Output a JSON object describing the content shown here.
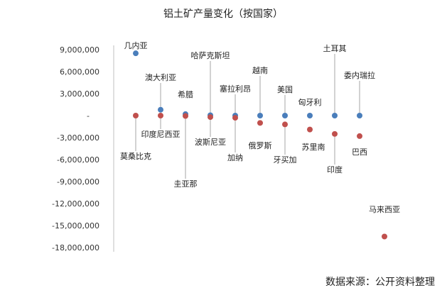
{
  "chart_data": {
    "type": "scatter",
    "title": "铝土矿产量变化（按国家）",
    "source": "数据来源：公开资料整理",
    "ylim": [
      -18000000,
      9000000
    ],
    "y_ticks": [
      {
        "value": 9000000,
        "label": "9,000,000"
      },
      {
        "value": 6000000,
        "label": "6,000,000"
      },
      {
        "value": 3000000,
        "label": "3,000,000"
      },
      {
        "value": 0,
        "label": "-"
      },
      {
        "value": -3000000,
        "label": "-3,000,000"
      },
      {
        "value": -6000000,
        "label": "-6,000,000"
      },
      {
        "value": -9000000,
        "label": "-9,000,000"
      },
      {
        "value": -12000000,
        "label": "-12,000,000"
      },
      {
        "value": -15000000,
        "label": "-15,000,000"
      },
      {
        "value": -18000000,
        "label": "-18,000,000"
      }
    ],
    "grid": false,
    "legend": "none",
    "colors": {
      "increase": "#4a7ebb",
      "decrease": "#c0504d"
    },
    "series": [
      {
        "key": "increase",
        "points": [
          {
            "x": 1,
            "y": 8500000,
            "label": "几内亚"
          },
          {
            "x": 2,
            "y": 800000,
            "label": "澳大利亚"
          },
          {
            "x": 3,
            "y": 200000,
            "label": "希腊"
          },
          {
            "x": 4,
            "y": 50000,
            "label": "哈萨克斯坦"
          },
          {
            "x": 5,
            "y": 0,
            "label": "塞拉利昂"
          },
          {
            "x": 6,
            "y": 0,
            "label": "越南"
          },
          {
            "x": 7,
            "y": 0,
            "label": "美国"
          },
          {
            "x": 8,
            "y": 0,
            "label": "匈牙利"
          },
          {
            "x": 9,
            "y": 0,
            "label": "土耳其"
          },
          {
            "x": 10,
            "y": 0,
            "label": "委内瑞拉"
          }
        ]
      },
      {
        "key": "decrease",
        "points": [
          {
            "x": 1,
            "y": 0,
            "label": "莫桑比克"
          },
          {
            "x": 2,
            "y": 0,
            "label": "印度尼西亚"
          },
          {
            "x": 3,
            "y": -50000,
            "label": "圭亚那"
          },
          {
            "x": 4,
            "y": -200000,
            "label": "波斯尼亚"
          },
          {
            "x": 5,
            "y": -300000,
            "label": "加纳"
          },
          {
            "x": 6,
            "y": -1000000,
            "label": "俄罗斯"
          },
          {
            "x": 7,
            "y": -1200000,
            "label": "牙买加"
          },
          {
            "x": 8,
            "y": -1900000,
            "label": "苏里南"
          },
          {
            "x": 9,
            "y": -2500000,
            "label": "印度"
          },
          {
            "x": 10,
            "y": -2800000,
            "label": "巴西"
          },
          {
            "x": 11,
            "y": -16500000,
            "label": "马来西亚"
          }
        ]
      }
    ]
  }
}
